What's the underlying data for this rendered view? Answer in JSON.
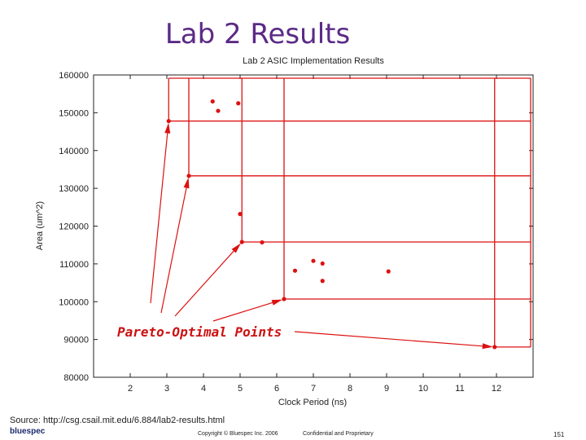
{
  "slide": {
    "title": "Lab 2 Results",
    "source": "Source: http://csg.csail.mit.edu/6.884/lab2-results.html",
    "logo": "bluespec",
    "copyright": "Copyright © Bluespec Inc. 2006",
    "confidential": "Confidential and Proprietary",
    "page_number": "151"
  },
  "colors": {
    "title": "#5b2a86",
    "series": "#dd1111",
    "annotation": "#cc1111"
  },
  "chart_data": {
    "type": "scatter",
    "title": "Lab 2 ASIC Implementation Results",
    "xlabel": "Clock Period (ns)",
    "ylabel": "Area (um^2)",
    "xlim": [
      1,
      13
    ],
    "ylim": [
      80000,
      160000
    ],
    "x_ticks": [
      2,
      3,
      4,
      5,
      6,
      7,
      8,
      9,
      10,
      11,
      12
    ],
    "y_ticks": [
      80000,
      90000,
      100000,
      110000,
      120000,
      130000,
      140000,
      150000,
      160000
    ],
    "y_tick_labels": [
      "80000",
      "90000",
      "100000",
      "110000",
      "120000",
      "130000",
      "140000",
      "150000",
      "160000"
    ],
    "grid": false,
    "points": [
      {
        "x": 3.05,
        "y": 147800
      },
      {
        "x": 4.25,
        "y": 153000
      },
      {
        "x": 4.4,
        "y": 150500
      },
      {
        "x": 4.95,
        "y": 152500
      },
      {
        "x": 3.6,
        "y": 133300
      },
      {
        "x": 5.0,
        "y": 123200
      },
      {
        "x": 5.05,
        "y": 115800
      },
      {
        "x": 5.6,
        "y": 115700
      },
      {
        "x": 6.5,
        "y": 108200
      },
      {
        "x": 7.0,
        "y": 110800
      },
      {
        "x": 7.25,
        "y": 110100
      },
      {
        "x": 7.25,
        "y": 105500
      },
      {
        "x": 9.05,
        "y": 108000
      },
      {
        "x": 6.2,
        "y": 100700
      },
      {
        "x": 11.95,
        "y": 88000
      }
    ],
    "pareto_front": [
      {
        "x": 3.05,
        "y": 147800
      },
      {
        "x": 3.6,
        "y": 133300
      },
      {
        "x": 5.05,
        "y": 115800
      },
      {
        "x": 6.2,
        "y": 100700
      },
      {
        "x": 11.95,
        "y": 88000
      }
    ],
    "annotation": {
      "text": "Pareto-Optimal Points"
    }
  }
}
